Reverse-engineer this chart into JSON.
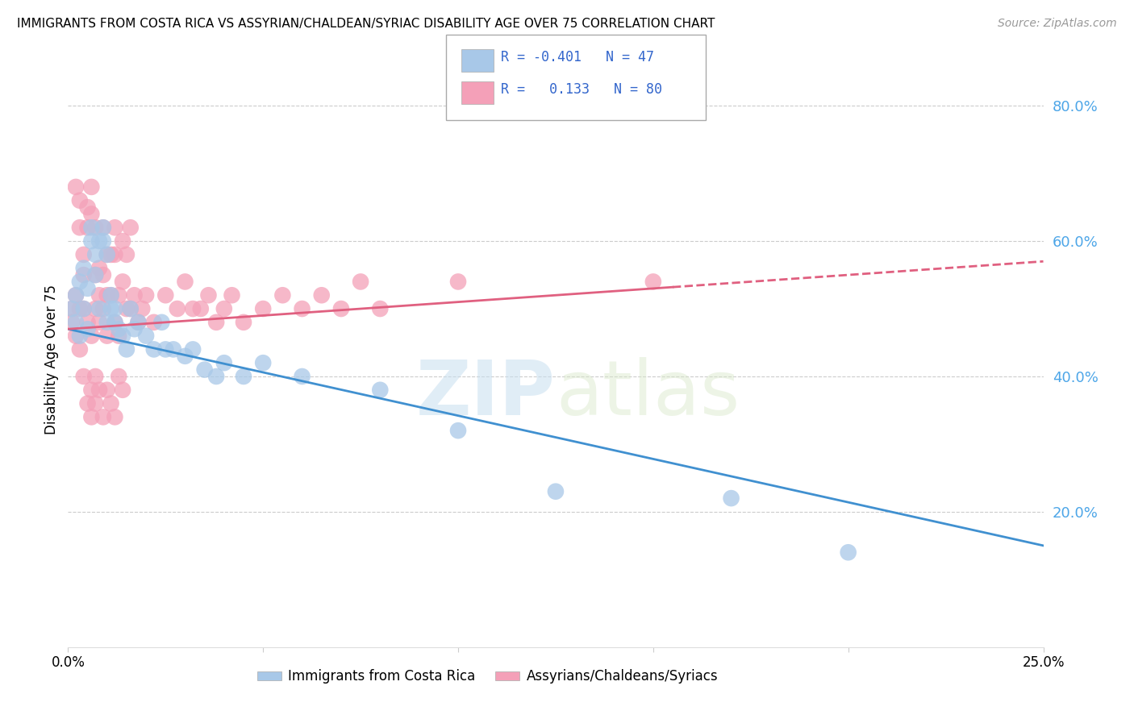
{
  "title": "IMMIGRANTS FROM COSTA RICA VS ASSYRIAN/CHALDEAN/SYRIAC DISABILITY AGE OVER 75 CORRELATION CHART",
  "source": "Source: ZipAtlas.com",
  "ylabel": "Disability Age Over 75",
  "xlim": [
    0.0,
    0.25
  ],
  "ylim": [
    0.0,
    0.85
  ],
  "xticks": [
    0.0,
    0.05,
    0.1,
    0.15,
    0.2,
    0.25
  ],
  "xticklabels": [
    "0.0%",
    "",
    "",
    "",
    "",
    "25.0%"
  ],
  "right_yticks": [
    0.2,
    0.4,
    0.6,
    0.8
  ],
  "right_yticklabels": [
    "20.0%",
    "40.0%",
    "60.0%",
    "80.0%"
  ],
  "blue_R": -0.401,
  "blue_N": 47,
  "pink_R": 0.133,
  "pink_N": 80,
  "blue_color": "#a8c8e8",
  "pink_color": "#f4a0b8",
  "blue_line_color": "#4090d0",
  "pink_line_color": "#e06080",
  "blue_label": "Immigrants from Costa Rica",
  "pink_label": "Assyrians/Chaldeans/Syriacs",
  "watermark_zip": "ZIP",
  "watermark_atlas": "atlas",
  "background_color": "#ffffff",
  "grid_color": "#cccccc",
  "title_fontsize": 11,
  "legend_fontsize": 12,
  "blue_x": [
    0.001,
    0.002,
    0.002,
    0.003,
    0.003,
    0.004,
    0.004,
    0.005,
    0.005,
    0.006,
    0.006,
    0.007,
    0.007,
    0.008,
    0.008,
    0.009,
    0.009,
    0.01,
    0.01,
    0.011,
    0.011,
    0.012,
    0.012,
    0.013,
    0.014,
    0.015,
    0.016,
    0.017,
    0.018,
    0.02,
    0.022,
    0.024,
    0.025,
    0.027,
    0.03,
    0.032,
    0.035,
    0.038,
    0.04,
    0.045,
    0.05,
    0.06,
    0.08,
    0.1,
    0.125,
    0.17,
    0.2
  ],
  "blue_y": [
    0.5,
    0.52,
    0.48,
    0.54,
    0.46,
    0.56,
    0.5,
    0.53,
    0.47,
    0.6,
    0.62,
    0.55,
    0.58,
    0.5,
    0.6,
    0.6,
    0.62,
    0.58,
    0.48,
    0.52,
    0.5,
    0.5,
    0.48,
    0.47,
    0.46,
    0.44,
    0.5,
    0.47,
    0.48,
    0.46,
    0.44,
    0.48,
    0.44,
    0.44,
    0.43,
    0.44,
    0.41,
    0.4,
    0.42,
    0.4,
    0.42,
    0.4,
    0.38,
    0.32,
    0.23,
    0.22,
    0.14
  ],
  "pink_x": [
    0.001,
    0.001,
    0.002,
    0.002,
    0.002,
    0.003,
    0.003,
    0.003,
    0.004,
    0.004,
    0.004,
    0.005,
    0.005,
    0.005,
    0.006,
    0.006,
    0.006,
    0.007,
    0.007,
    0.007,
    0.008,
    0.008,
    0.008,
    0.009,
    0.009,
    0.009,
    0.01,
    0.01,
    0.01,
    0.011,
    0.011,
    0.012,
    0.012,
    0.012,
    0.013,
    0.013,
    0.014,
    0.014,
    0.015,
    0.015,
    0.016,
    0.016,
    0.017,
    0.018,
    0.019,
    0.02,
    0.022,
    0.025,
    0.028,
    0.03,
    0.032,
    0.034,
    0.036,
    0.038,
    0.04,
    0.042,
    0.045,
    0.05,
    0.055,
    0.06,
    0.065,
    0.07,
    0.075,
    0.08,
    0.003,
    0.004,
    0.005,
    0.006,
    0.006,
    0.007,
    0.007,
    0.008,
    0.009,
    0.01,
    0.011,
    0.012,
    0.013,
    0.014,
    0.15,
    0.1
  ],
  "pink_y": [
    0.5,
    0.48,
    0.52,
    0.68,
    0.46,
    0.62,
    0.5,
    0.66,
    0.55,
    0.58,
    0.5,
    0.62,
    0.48,
    0.65,
    0.64,
    0.46,
    0.68,
    0.55,
    0.5,
    0.62,
    0.52,
    0.56,
    0.48,
    0.55,
    0.5,
    0.62,
    0.58,
    0.52,
    0.46,
    0.58,
    0.52,
    0.58,
    0.62,
    0.48,
    0.52,
    0.46,
    0.6,
    0.54,
    0.58,
    0.5,
    0.62,
    0.5,
    0.52,
    0.48,
    0.5,
    0.52,
    0.48,
    0.52,
    0.5,
    0.54,
    0.5,
    0.5,
    0.52,
    0.48,
    0.5,
    0.52,
    0.48,
    0.5,
    0.52,
    0.5,
    0.52,
    0.5,
    0.54,
    0.5,
    0.44,
    0.4,
    0.36,
    0.38,
    0.34,
    0.4,
    0.36,
    0.38,
    0.34,
    0.38,
    0.36,
    0.34,
    0.4,
    0.38,
    0.54,
    0.54
  ]
}
